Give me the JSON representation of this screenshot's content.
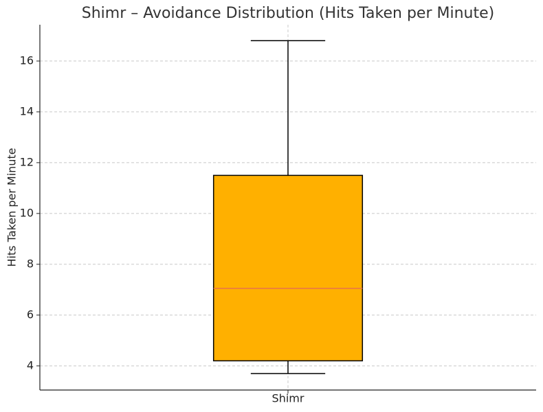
{
  "chart_data": {
    "type": "box",
    "title": "Shimr – Avoidance Distribution (Hits Taken per Minute)",
    "y_label": "Hits Taken per Minute",
    "categories": [
      "Shimr"
    ],
    "boxes": [
      {
        "whislo": 3.7,
        "q1": 4.2,
        "med": 7.05,
        "q3": 11.5,
        "whishi": 16.8
      }
    ],
    "color": "#ffb000",
    "median_color": "#e8734a",
    "ylim": [
      3.05,
      17.43
    ],
    "yticks": [
      4,
      6,
      8,
      10,
      12,
      14,
      16
    ],
    "grid": true
  }
}
